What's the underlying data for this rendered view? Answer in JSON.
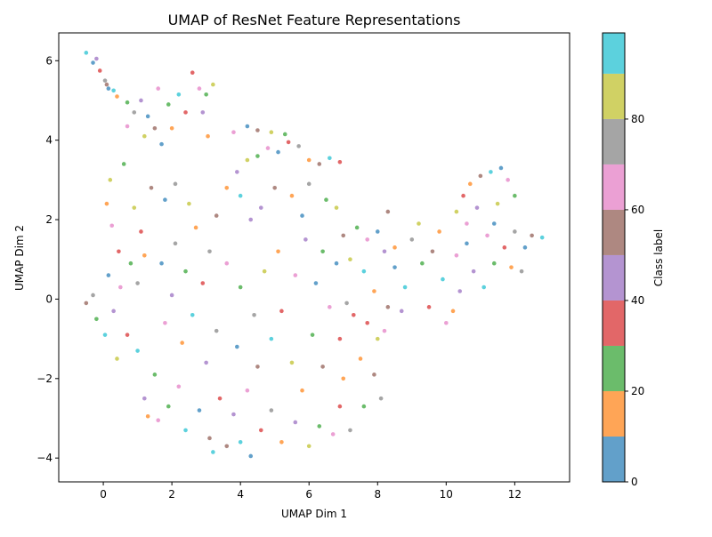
{
  "chart_data": {
    "type": "scatter",
    "title": "UMAP of ResNet Feature Representations",
    "xlabel": "UMAP Dim 1",
    "ylabel": "UMAP Dim 2",
    "xlim": [
      -1.3,
      13.6
    ],
    "ylim": [
      -4.6,
      6.7
    ],
    "xticks": [
      0,
      2,
      4,
      6,
      8,
      10,
      12
    ],
    "yticks": [
      -4,
      -2,
      0,
      2,
      4,
      6
    ],
    "grid": false,
    "point_alpha": 0.7,
    "n_classes": 100,
    "color_palette": [
      "#1f77b4",
      "#ff7f0e",
      "#2ca02c",
      "#d62728",
      "#9467bd",
      "#8c564b",
      "#e377c2",
      "#7f7f7f",
      "#bcbd22",
      "#17becf"
    ],
    "colorbar": {
      "label": "Class label",
      "range": [
        0,
        99
      ],
      "ticks": [
        0,
        20,
        40,
        60,
        80
      ],
      "bins": [
        {
          "from": 0,
          "to": 10,
          "color": "#1f77b4"
        },
        {
          "from": 10,
          "to": 20,
          "color": "#ff7f0e"
        },
        {
          "from": 20,
          "to": 30,
          "color": "#2ca02c"
        },
        {
          "from": 30,
          "to": 40,
          "color": "#d62728"
        },
        {
          "from": 40,
          "to": 50,
          "color": "#9467bd"
        },
        {
          "from": 50,
          "to": 60,
          "color": "#8c564b"
        },
        {
          "from": 60,
          "to": 70,
          "color": "#e377c2"
        },
        {
          "from": 70,
          "to": 80,
          "color": "#7f7f7f"
        },
        {
          "from": 80,
          "to": 90,
          "color": "#bcbd22"
        },
        {
          "from": 90,
          "to": 99,
          "color": "#17becf"
        }
      ]
    },
    "points": [
      [
        -0.5,
        6.2,
        90
      ],
      [
        -0.3,
        5.95,
        6
      ],
      [
        -0.1,
        5.75,
        33
      ],
      [
        0.05,
        5.5,
        71
      ],
      [
        0.15,
        5.3,
        3
      ],
      [
        0.3,
        5.25,
        92
      ],
      [
        -0.2,
        6.05,
        47
      ],
      [
        0.1,
        5.4,
        58
      ],
      [
        0.4,
        5.1,
        15
      ],
      [
        0.7,
        4.95,
        25
      ],
      [
        0.9,
        4.7,
        74
      ],
      [
        1.1,
        5.0,
        41
      ],
      [
        1.3,
        4.6,
        8
      ],
      [
        1.6,
        5.3,
        65
      ],
      [
        1.9,
        4.9,
        22
      ],
      [
        2.2,
        5.15,
        96
      ],
      [
        2.4,
        4.7,
        37
      ],
      [
        1.5,
        4.3,
        54
      ],
      [
        1.2,
        4.1,
        81
      ],
      [
        2.0,
        4.3,
        11
      ],
      [
        2.6,
        5.7,
        34
      ],
      [
        2.8,
        5.3,
        68
      ],
      [
        3.0,
        5.15,
        27
      ],
      [
        3.2,
        5.4,
        85
      ],
      [
        2.9,
        4.7,
        49
      ],
      [
        3.05,
        4.1,
        18
      ],
      [
        0.7,
        4.35,
        62
      ],
      [
        1.7,
        3.9,
        4
      ],
      [
        0.6,
        3.4,
        29
      ],
      [
        0.2,
        3.0,
        88
      ],
      [
        0.1,
        2.4,
        14
      ],
      [
        0.25,
        1.85,
        66
      ],
      [
        0.45,
        1.2,
        39
      ],
      [
        0.15,
        0.6,
        5
      ],
      [
        -0.3,
        0.1,
        77
      ],
      [
        -0.5,
        -0.1,
        52
      ],
      [
        -0.2,
        -0.5,
        21
      ],
      [
        0.05,
        -0.9,
        93
      ],
      [
        0.3,
        -0.3,
        44
      ],
      [
        0.5,
        0.3,
        61
      ],
      [
        0.8,
        0.9,
        23
      ],
      [
        1.0,
        0.4,
        70
      ],
      [
        1.2,
        1.1,
        12
      ],
      [
        0.9,
        2.3,
        83
      ],
      [
        1.1,
        1.7,
        36
      ],
      [
        1.4,
        2.8,
        57
      ],
      [
        1.8,
        2.5,
        9
      ],
      [
        2.1,
        2.9,
        76
      ],
      [
        0.7,
        -0.9,
        30
      ],
      [
        1.0,
        -1.3,
        95
      ],
      [
        1.2,
        -2.5,
        48
      ],
      [
        1.3,
        -2.95,
        19
      ],
      [
        1.6,
        -3.05,
        63
      ],
      [
        1.5,
        -1.9,
        26
      ],
      [
        0.4,
        -1.5,
        87
      ],
      [
        1.7,
        0.9,
        1
      ],
      [
        2.1,
        1.4,
        72
      ],
      [
        2.4,
        0.7,
        28
      ],
      [
        2.0,
        0.1,
        43
      ],
      [
        1.8,
        -0.6,
        60
      ],
      [
        2.3,
        -1.1,
        10
      ],
      [
        2.6,
        -0.4,
        97
      ],
      [
        2.9,
        0.4,
        35
      ],
      [
        3.1,
        1.2,
        79
      ],
      [
        2.7,
        1.8,
        16
      ],
      [
        3.3,
        2.1,
        51
      ],
      [
        2.5,
        2.4,
        84
      ],
      [
        3.0,
        -1.6,
        40
      ],
      [
        2.2,
        -2.2,
        67
      ],
      [
        1.9,
        -2.7,
        24
      ],
      [
        2.4,
        -3.3,
        90
      ],
      [
        2.8,
        -2.8,
        6
      ],
      [
        3.1,
        -3.5,
        55
      ],
      [
        3.4,
        -2.5,
        32
      ],
      [
        3.3,
        -0.8,
        73
      ],
      [
        3.6,
        2.8,
        13
      ],
      [
        3.9,
        3.2,
        46
      ],
      [
        4.2,
        3.5,
        89
      ],
      [
        4.5,
        3.6,
        20
      ],
      [
        4.8,
        3.8,
        64
      ],
      [
        5.1,
        3.7,
        2
      ],
      [
        5.4,
        3.95,
        38
      ],
      [
        5.7,
        3.85,
        78
      ],
      [
        6.0,
        3.5,
        17
      ],
      [
        6.3,
        3.4,
        56
      ],
      [
        6.6,
        3.55,
        91
      ],
      [
        6.9,
        3.45,
        31
      ],
      [
        3.8,
        4.2,
        69
      ],
      [
        4.2,
        4.35,
        7
      ],
      [
        4.5,
        4.25,
        50
      ],
      [
        4.9,
        4.2,
        82
      ],
      [
        5.3,
        4.15,
        25
      ],
      [
        4.0,
        2.6,
        99
      ],
      [
        4.6,
        2.3,
        42
      ],
      [
        5.0,
        2.8,
        59
      ],
      [
        5.5,
        2.6,
        12
      ],
      [
        6.0,
        2.9,
        75
      ],
      [
        6.5,
        2.5,
        29
      ],
      [
        6.8,
        2.3,
        86
      ],
      [
        5.8,
        2.1,
        3
      ],
      [
        4.3,
        2.0,
        47
      ],
      [
        3.6,
        0.9,
        63
      ],
      [
        4.0,
        0.3,
        20
      ],
      [
        4.4,
        -0.4,
        71
      ],
      [
        3.9,
        -1.2,
        8
      ],
      [
        4.5,
        -1.7,
        54
      ],
      [
        4.9,
        -1.0,
        94
      ],
      [
        5.2,
        -0.3,
        33
      ],
      [
        5.6,
        0.6,
        61
      ],
      [
        5.1,
        1.2,
        18
      ],
      [
        4.7,
        0.7,
        80
      ],
      [
        5.9,
        1.5,
        45
      ],
      [
        6.2,
        0.4,
        2
      ],
      [
        6.6,
        -0.2,
        68
      ],
      [
        6.1,
        -0.9,
        27
      ],
      [
        5.5,
        -1.6,
        88
      ],
      [
        5.8,
        -2.3,
        14
      ],
      [
        6.4,
        -1.7,
        57
      ],
      [
        6.9,
        -1.0,
        36
      ],
      [
        7.1,
        -0.1,
        79
      ],
      [
        6.8,
        0.9,
        9
      ],
      [
        7.0,
        1.6,
        52
      ],
      [
        6.4,
        1.2,
        23
      ],
      [
        4.2,
        -2.3,
        66
      ],
      [
        3.8,
        -2.9,
        40
      ],
      [
        4.0,
        -3.6,
        92
      ],
      [
        4.3,
        -3.95,
        4
      ],
      [
        4.6,
        -3.3,
        31
      ],
      [
        4.9,
        -2.8,
        77
      ],
      [
        5.2,
        -3.6,
        16
      ],
      [
        5.6,
        -3.1,
        49
      ],
      [
        6.0,
        -3.7,
        85
      ],
      [
        6.3,
        -3.2,
        21
      ],
      [
        6.7,
        -3.4,
        62
      ],
      [
        6.9,
        -2.7,
        38
      ],
      [
        7.2,
        -3.3,
        74
      ],
      [
        7.0,
        -2.0,
        11
      ],
      [
        3.6,
        -3.7,
        55
      ],
      [
        3.2,
        -3.85,
        97
      ],
      [
        7.4,
        1.8,
        28
      ],
      [
        7.7,
        1.5,
        67
      ],
      [
        8.0,
        1.7,
        6
      ],
      [
        8.2,
        1.2,
        43
      ],
      [
        7.6,
        0.7,
        90
      ],
      [
        7.9,
        0.2,
        19
      ],
      [
        8.3,
        -0.2,
        58
      ],
      [
        7.7,
        -0.6,
        35
      ],
      [
        8.0,
        -1.0,
        82
      ],
      [
        7.5,
        -1.5,
        13
      ],
      [
        7.9,
        -1.9,
        50
      ],
      [
        8.1,
        -2.5,
        72
      ],
      [
        7.6,
        -2.7,
        26
      ],
      [
        8.2,
        -0.8,
        64
      ],
      [
        8.5,
        0.8,
        7
      ],
      [
        8.8,
        0.3,
        93
      ],
      [
        8.7,
        -0.3,
        41
      ],
      [
        8.3,
        2.2,
        59
      ],
      [
        8.5,
        1.3,
        15
      ],
      [
        7.2,
        1.0,
        87
      ],
      [
        7.3,
        -0.4,
        32
      ],
      [
        9.0,
        1.5,
        76
      ],
      [
        9.3,
        0.9,
        24
      ],
      [
        9.6,
        1.2,
        53
      ],
      [
        9.9,
        0.5,
        98
      ],
      [
        10.2,
        -0.3,
        10
      ],
      [
        10.4,
        0.2,
        44
      ],
      [
        10.0,
        -0.6,
        69
      ],
      [
        9.5,
        -0.2,
        30
      ],
      [
        9.2,
        1.9,
        83
      ],
      [
        9.8,
        1.7,
        17
      ],
      [
        10.3,
        1.1,
        60
      ],
      [
        10.6,
        1.4,
        3
      ],
      [
        10.8,
        0.7,
        48
      ],
      [
        11.1,
        0.3,
        91
      ],
      [
        11.4,
        0.9,
        22
      ],
      [
        11.2,
        1.6,
        65
      ],
      [
        11.7,
        1.3,
        37
      ],
      [
        12.0,
        1.7,
        78
      ],
      [
        12.3,
        1.3,
        8
      ],
      [
        12.5,
        1.6,
        51
      ],
      [
        12.8,
        1.55,
        94
      ],
      [
        11.9,
        0.8,
        19
      ],
      [
        12.2,
        0.7,
        71
      ],
      [
        10.5,
        2.6,
        33
      ],
      [
        10.3,
        2.2,
        86
      ],
      [
        10.7,
        2.9,
        14
      ],
      [
        11.0,
        3.1,
        56
      ],
      [
        11.3,
        3.2,
        95
      ],
      [
        11.6,
        3.3,
        1
      ],
      [
        11.8,
        3.0,
        67
      ],
      [
        12.0,
        2.6,
        27
      ],
      [
        11.5,
        2.4,
        84
      ],
      [
        10.9,
        2.3,
        42
      ],
      [
        10.6,
        1.9,
        62
      ],
      [
        11.4,
        1.9,
        9
      ]
    ]
  }
}
